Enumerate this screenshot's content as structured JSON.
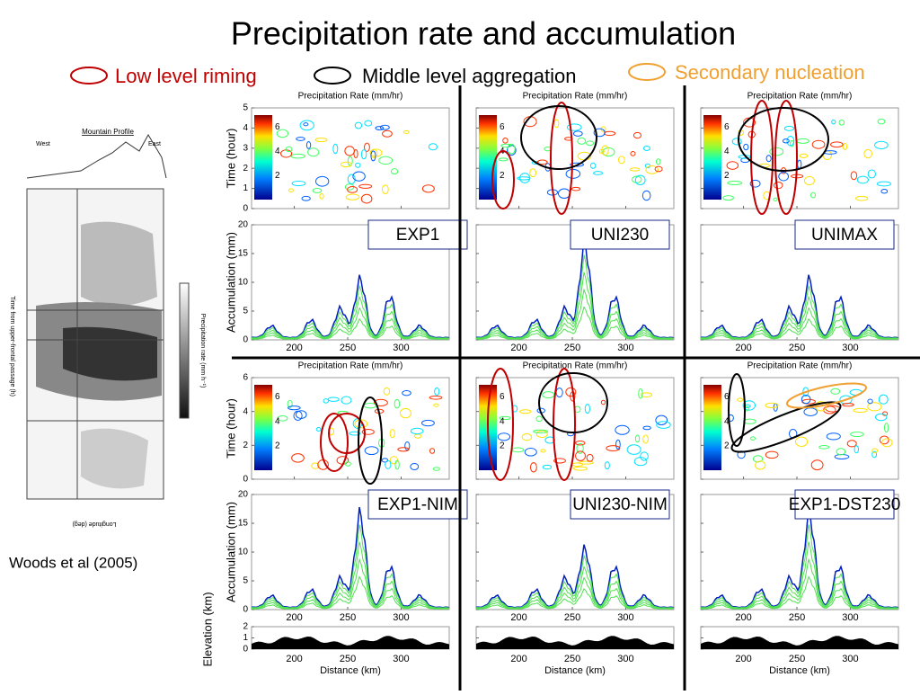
{
  "title": "Precipitation rate and accumulation",
  "legend": [
    {
      "label": "Low level riming",
      "color": "#c00000"
    },
    {
      "label": "Middle level aggregation",
      "color": "#000000"
    },
    {
      "label": "Secondary nucleation",
      "color": "#f0a030"
    }
  ],
  "citation": "Woods et al (2005)",
  "inset": {
    "title": "Mountain Profile",
    "west": "West",
    "east": "East",
    "xlabel": "Longitude (deg)",
    "ylabel": "Time from upper-frontal passage (h)",
    "colorbar": "Precipitation rate (mm h⁻¹)"
  },
  "panel_title": "Precipitation Rate (mm/hr)",
  "axis_labels": {
    "time": "Time (hour)",
    "accumulation": "Accumulation (mm)",
    "elevation": "Elevation (km)",
    "distance": "Distance (km)"
  },
  "experiments": [
    "EXP1",
    "UNI230",
    "UNIMAX",
    "EXP1-NIM",
    "UNI230-NIM",
    "EXP1-DST230"
  ],
  "xlim": [
    160,
    345
  ],
  "xticks": [
    200,
    250,
    300
  ],
  "time_top": {
    "ylim": [
      0,
      5
    ],
    "yticks": [
      0,
      1,
      2,
      3,
      4,
      5
    ]
  },
  "time_bottom": {
    "ylim": [
      0,
      6
    ],
    "yticks": [
      0,
      2,
      4,
      6
    ]
  },
  "accumulation": {
    "ylim": [
      0,
      20
    ],
    "yticks": [
      0,
      5,
      10,
      15,
      20
    ]
  },
  "elevation": {
    "ylim": [
      0,
      2
    ],
    "yticks": [
      0,
      1,
      2
    ]
  },
  "colorbar_ticks": [
    2,
    4,
    6
  ]
}
